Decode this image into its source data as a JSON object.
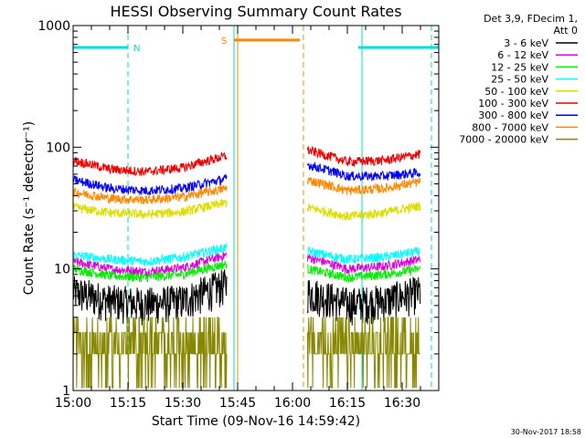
{
  "chart_data": {
    "type": "line",
    "title": "HESSI Observing Summary Count Rates",
    "xlabel": "Start Time (09-Nov-16 14:59:42)",
    "ylabel": "Count Rate (s⁻¹ detector⁻¹)",
    "yscale": "log",
    "ylim": [
      1,
      1000
    ],
    "xlim_minutes": [
      0,
      38
    ],
    "x_ticks": [
      "15:00",
      "15:15",
      "15:30",
      "15:45",
      "16:00",
      "16:15",
      "16:30"
    ],
    "x_tick_minutes": [
      0,
      15,
      30,
      45,
      60,
      75,
      90
    ],
    "x_range_minutes": [
      0,
      100
    ],
    "y_ticks": [
      "1",
      "10",
      "100",
      "1000"
    ],
    "grid": false,
    "legend_placement": "right",
    "legend_header": [
      "Det 3,9, FDecim 1,",
      "Att 0"
    ],
    "timestamp": "30-Nov-2017 18:58",
    "data_gaps_minutes": [
      [
        42,
        64
      ]
    ],
    "series": [
      {
        "name": "3 - 6 keV",
        "color": "#000000",
        "x": [
          0,
          10,
          20,
          30,
          42,
          64,
          75,
          85,
          95
        ],
        "y": [
          6.5,
          5.5,
          5.2,
          5.5,
          7.5,
          6.5,
          5.2,
          5.5,
          6.5
        ]
      },
      {
        "name": "6 - 12 keV",
        "color": "#dd00dd",
        "x": [
          0,
          10,
          20,
          30,
          42,
          64,
          75,
          85,
          95
        ],
        "y": [
          11.5,
          10,
          9.5,
          10.2,
          13,
          12.5,
          10,
          10.5,
          12
        ]
      },
      {
        "name": "12 - 25 keV",
        "color": "#00ee00",
        "x": [
          0,
          10,
          20,
          30,
          42,
          64,
          75,
          85,
          95
        ],
        "y": [
          10,
          8.8,
          8.5,
          9,
          11,
          10,
          8.5,
          9,
          10
        ]
      },
      {
        "name": "25 - 50 keV",
        "color": "#00ffff",
        "x": [
          0,
          10,
          20,
          30,
          42,
          64,
          75,
          85,
          95
        ],
        "y": [
          13,
          12,
          11.5,
          12.5,
          15,
          14,
          12,
          12.5,
          14
        ]
      },
      {
        "name": "50 - 100 keV",
        "color": "#dddd00",
        "x": [
          0,
          10,
          20,
          30,
          42,
          64,
          75,
          85,
          95
        ],
        "y": [
          32,
          29,
          28,
          29.5,
          35,
          32,
          27,
          29,
          33
        ]
      },
      {
        "name": "100 - 300 keV",
        "color": "#ee0000",
        "x": [
          0,
          10,
          20,
          30,
          42,
          64,
          75,
          85,
          95
        ],
        "y": [
          78,
          66,
          63,
          68,
          85,
          95,
          76,
          78,
          88
        ]
      },
      {
        "name": "300 - 800 keV",
        "color": "#0000ff",
        "x": [
          0,
          10,
          20,
          30,
          42,
          64,
          75,
          85,
          95
        ],
        "y": [
          54,
          46,
          44,
          46,
          55,
          72,
          58,
          58,
          62
        ]
      },
      {
        "name": "800 - 7000 keV",
        "color": "#ff8800",
        "x": [
          0,
          10,
          20,
          30,
          42,
          64,
          75,
          85,
          95
        ],
        "y": [
          43,
          38,
          37,
          39,
          46,
          54,
          44,
          46,
          52
        ]
      },
      {
        "name": "7000 - 20000 keV",
        "color": "#888800",
        "x": [
          0,
          10,
          20,
          30,
          42,
          64,
          75,
          85,
          95
        ],
        "y": [
          2.5,
          2.2,
          2.2,
          2.4,
          2.8,
          2.7,
          2.3,
          2.4,
          2.8
        ]
      }
    ],
    "flag_bars": [
      {
        "label": "N",
        "color": "#00dddd",
        "level": 660,
        "segments": [
          [
            0,
            15
          ],
          [
            78,
            100
          ]
        ]
      },
      {
        "label": "S",
        "color": "#ff8800",
        "level": 760,
        "segments": [
          [
            44,
            62
          ]
        ]
      }
    ],
    "vertical_markers": [
      {
        "x": 15,
        "color": "#00dddd",
        "style": "dashed"
      },
      {
        "x": 44,
        "color": "#00dddd",
        "style": "solid"
      },
      {
        "x": 45,
        "color": "#ff8800",
        "style": "solid"
      },
      {
        "x": 63,
        "color": "#ff8800",
        "style": "dashed"
      },
      {
        "x": 79,
        "color": "#00dddd",
        "style": "solid"
      },
      {
        "x": 98,
        "color": "#00dddd",
        "style": "dashed"
      }
    ]
  }
}
